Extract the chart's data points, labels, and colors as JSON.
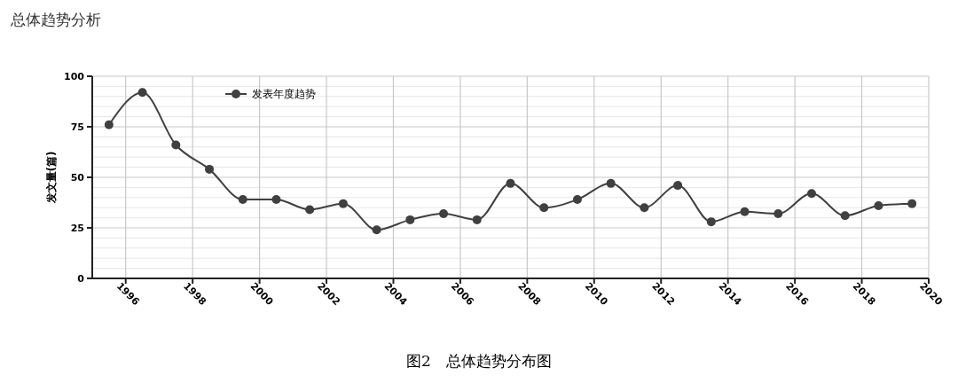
{
  "chart_data": {
    "type": "line",
    "title": "总体趋势分析",
    "ylabel": "发文量(篇)",
    "annotations": [
      "图2　总体趋势分布图"
    ],
    "x": [
      1995.5,
      1996.5,
      1997.5,
      1998.5,
      1999.5,
      2000.5,
      2001.5,
      2002.5,
      2003.5,
      2004.5,
      2005.5,
      2006.5,
      2007.5,
      2008.5,
      2009.5,
      2010.5,
      2011.5,
      2012.5,
      2013.5,
      2014.5,
      2015.5,
      2016.5,
      2017.5,
      2018.5,
      2019.5
    ],
    "series": [
      {
        "name": "发表年度趋势",
        "color": "#404040",
        "values": [
          76,
          92,
          66,
          54,
          39,
          39,
          34,
          37,
          24,
          29,
          32,
          29,
          47,
          35,
          39,
          47,
          35,
          46,
          28,
          33,
          32,
          42,
          31,
          36,
          37
        ]
      }
    ],
    "xlim": [
      1995,
      2020
    ],
    "xticks": [
      1996,
      1998,
      2000,
      2002,
      2004,
      2006,
      2008,
      2010,
      2012,
      2014,
      2016,
      2018,
      2020
    ],
    "ylim": [
      0,
      100
    ],
    "yticks": [
      0,
      {
        "value": 5,
        "label": null
      },
      {
        "value": 10,
        "label": null
      },
      {
        "value": 15,
        "label": null
      },
      {
        "value": 20,
        "label": null
      },
      25,
      {
        "value": 30,
        "label": null
      },
      {
        "value": 35,
        "label": null
      },
      {
        "value": 40,
        "label": null
      },
      {
        "value": 45,
        "label": null
      },
      50,
      {
        "value": 55,
        "label": null
      },
      {
        "value": 60,
        "label": null
      },
      {
        "value": 65,
        "label": null
      },
      {
        "value": 70,
        "label": null
      },
      75,
      {
        "value": 80,
        "label": null
      },
      {
        "value": 85,
        "label": null
      },
      {
        "value": 90,
        "label": null
      },
      {
        "value": 95,
        "label": null
      },
      100
    ],
    "grid": true,
    "legend": "top left",
    "marker": "circle",
    "line_style": "solid"
  }
}
